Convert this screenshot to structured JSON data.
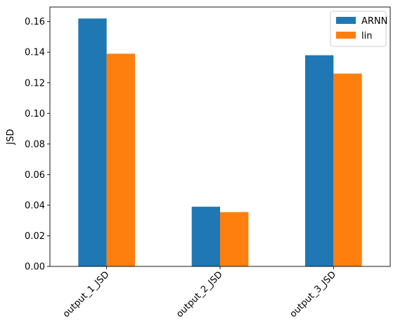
{
  "chart_data": {
    "type": "bar",
    "title": "",
    "xlabel": "",
    "ylabel": "JSD",
    "categories": [
      "output_1_JSD",
      "output_2_JSD",
      "output_3_JSD"
    ],
    "series": [
      {
        "name": "ARNN",
        "values": [
          0.162,
          0.039,
          0.138
        ],
        "color": "#1f77b4"
      },
      {
        "name": "lin",
        "values": [
          0.139,
          0.0355,
          0.126
        ],
        "color": "#ff7f0e"
      }
    ],
    "ylim": [
      0,
      0.1695
    ],
    "yticks": [
      0.0,
      0.02,
      0.04,
      0.06,
      0.08,
      0.1,
      0.12,
      0.14,
      0.16
    ],
    "ytick_labels": [
      "0.00",
      "0.02",
      "0.04",
      "0.06",
      "0.08",
      "0.10",
      "0.12",
      "0.14",
      "0.16"
    ],
    "grid": false,
    "legend_position": "top-right",
    "xtick_rotation_deg": 45
  }
}
